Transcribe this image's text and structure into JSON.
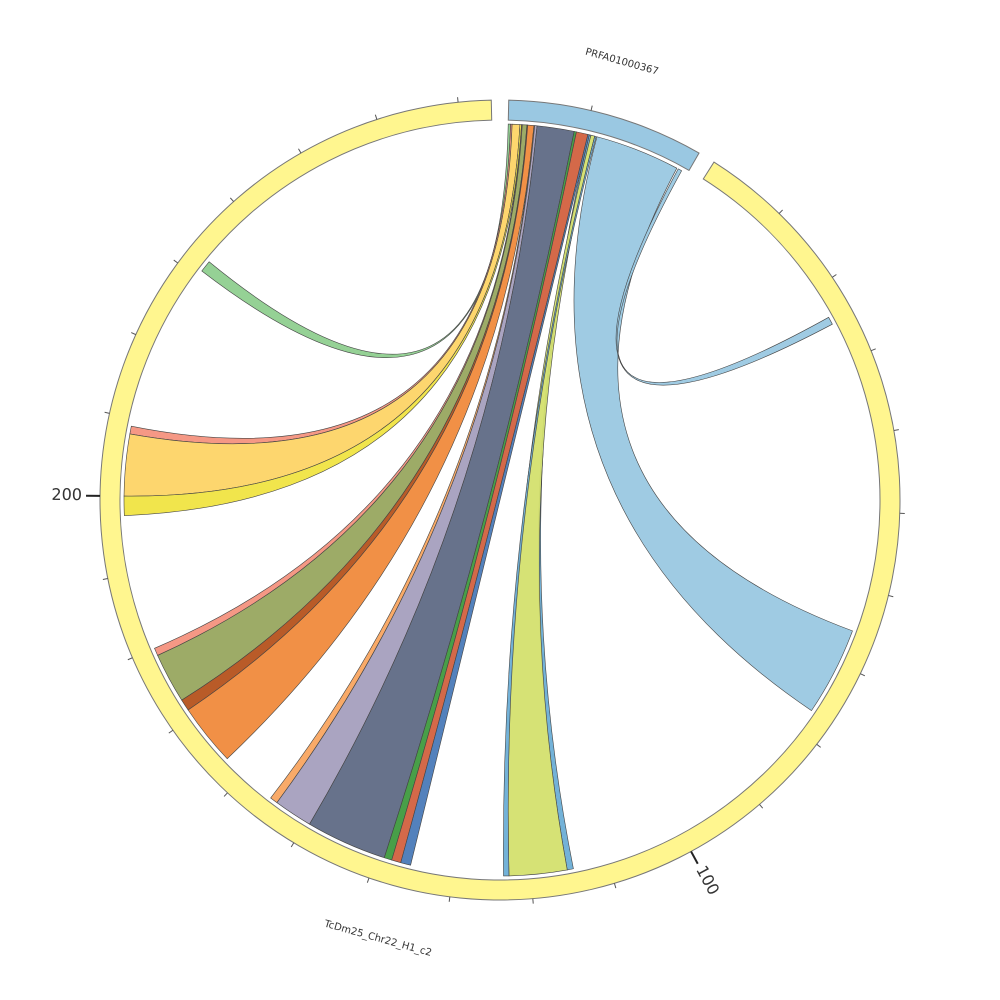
{
  "chart_data": {
    "type": "chord",
    "chromosomes": [
      {
        "name": "PRFA01000367",
        "length": 24,
        "color": "#9ac8e2",
        "major_ticks": [],
        "minor_ticks": [
          10
        ]
      },
      {
        "name": "TcDm25_Chr22_H1_c2",
        "length": 274,
        "color": "#fff68f",
        "major_ticks": [
          100,
          200
        ],
        "minor_ticks": [
          10,
          20,
          30,
          40,
          50,
          60,
          70,
          80,
          90,
          110,
          120,
          130,
          140,
          150,
          160,
          170,
          180,
          190,
          210,
          220,
          230,
          240,
          250,
          260,
          270
        ]
      }
    ],
    "links": [
      {
        "color": "#9ac8e2",
        "source": {
          "chromosome": "PRFA01000367",
          "start": 11.5,
          "end": 22.5
        },
        "target": {
          "chromosome": "TcDm25_Chr22_H1_c2",
          "start": 65.5,
          "end": 77
        }
      },
      {
        "color": "#9ac8e2",
        "source": {
          "chromosome": "PRFA01000367",
          "start": 22.7,
          "end": 23.2
        },
        "target": {
          "chromosome": "TcDm25_Chr22_H1_c2",
          "start": 24,
          "end": 25
        }
      },
      {
        "color": "#8fcf8f",
        "source": {
          "chromosome": "PRFA01000367",
          "start": 0,
          "end": 0.3
        },
        "target": {
          "chromosome": "TcDm25_Chr22_H1_c2",
          "start": 231,
          "end": 232.5
        }
      },
      {
        "color": "#f4927e",
        "source": {
          "chromosome": "PRFA01000367",
          "start": 0.3,
          "end": 0.5
        },
        "target": {
          "chromosome": "TcDm25_Chr22_H1_c2",
          "start": 208,
          "end": 209
        }
      },
      {
        "color": "#fdd466",
        "source": {
          "chromosome": "PRFA01000367",
          "start": 0.5,
          "end": 1.5
        },
        "target": {
          "chromosome": "TcDm25_Chr22_H1_c2",
          "start": 200,
          "end": 208
        }
      },
      {
        "color": "#f0e442",
        "source": {
          "chromosome": "PRFA01000367",
          "start": 1.5,
          "end": 1.7
        },
        "target": {
          "chromosome": "TcDm25_Chr22_H1_c2",
          "start": 197.5,
          "end": 200
        }
      },
      {
        "color": "#f4927e",
        "source": {
          "chromosome": "PRFA01000367",
          "start": 1.7,
          "end": 1.8
        },
        "target": {
          "chromosome": "TcDm25_Chr22_H1_c2",
          "start": 179,
          "end": 180
        }
      },
      {
        "color": "#98a65f",
        "source": {
          "chromosome": "PRFA01000367",
          "start": 1.8,
          "end": 2.4
        },
        "target": {
          "chromosome": "TcDm25_Chr22_H1_c2",
          "start": 172.5,
          "end": 179
        }
      },
      {
        "color": "#b5521c",
        "source": {
          "chromosome": "PRFA01000367",
          "start": 2.4,
          "end": 2.5
        },
        "target": {
          "chromosome": "TcDm25_Chr22_H1_c2",
          "start": 171,
          "end": 172.5
        }
      },
      {
        "color": "#f08a3c",
        "source": {
          "chromosome": "PRFA01000367",
          "start": 2.5,
          "end": 3.3
        },
        "target": {
          "chromosome": "TcDm25_Chr22_H1_c2",
          "start": 163,
          "end": 171
        }
      },
      {
        "color": "#f9a560",
        "source": {
          "chromosome": "PRFA01000367",
          "start": 3.3,
          "end": 3.4
        },
        "target": {
          "chromosome": "TcDm25_Chr22_H1_c2",
          "start": 154.5,
          "end": 155.5
        }
      },
      {
        "color": "#a59fbe",
        "source": {
          "chromosome": "PRFA01000367",
          "start": 3.4,
          "end": 3.7
        },
        "target": {
          "chromosome": "TcDm25_Chr22_H1_c2",
          "start": 149.5,
          "end": 154.5
        }
      },
      {
        "color": "#5f6a85",
        "source": {
          "chromosome": "PRFA01000367",
          "start": 3.7,
          "end": 8.5
        },
        "target": {
          "chromosome": "TcDm25_Chr22_H1_c2",
          "start": 139,
          "end": 149.5
        }
      },
      {
        "color": "#3e9a3e",
        "source": {
          "chromosome": "PRFA01000367",
          "start": 8.5,
          "end": 8.8
        },
        "target": {
          "chromosome": "TcDm25_Chr22_H1_c2",
          "start": 138,
          "end": 139
        }
      },
      {
        "color": "#d2613f",
        "source": {
          "chromosome": "PRFA01000367",
          "start": 8.8,
          "end": 10.3
        },
        "target": {
          "chromosome": "TcDm25_Chr22_H1_c2",
          "start": 136.8,
          "end": 138
        }
      },
      {
        "color": "#4a7ab8",
        "source": {
          "chromosome": "PRFA01000367",
          "start": 10.3,
          "end": 10.5
        },
        "target": {
          "chromosome": "TcDm25_Chr22_H1_c2",
          "start": 135.5,
          "end": 136.8
        }
      },
      {
        "color": "#6baed6",
        "source": {
          "chromosome": "PRFA01000367",
          "start": 10.5,
          "end": 10.7
        },
        "target": {
          "chromosome": "TcDm25_Chr22_H1_c2",
          "start": 114.5,
          "end": 115.3
        }
      },
      {
        "color": "#d4e06e",
        "source": {
          "chromosome": "PRFA01000367",
          "start": 10.7,
          "end": 11.2
        },
        "target": {
          "chromosome": "TcDm25_Chr22_H1_c2",
          "start": 115.3,
          "end": 122.8
        }
      },
      {
        "color": "#6baed6",
        "source": {
          "chromosome": "PRFA01000367",
          "start": 11.2,
          "end": 11.4
        },
        "target": {
          "chromosome": "TcDm25_Chr22_H1_c2",
          "start": 122.8,
          "end": 123.5
        }
      }
    ]
  }
}
